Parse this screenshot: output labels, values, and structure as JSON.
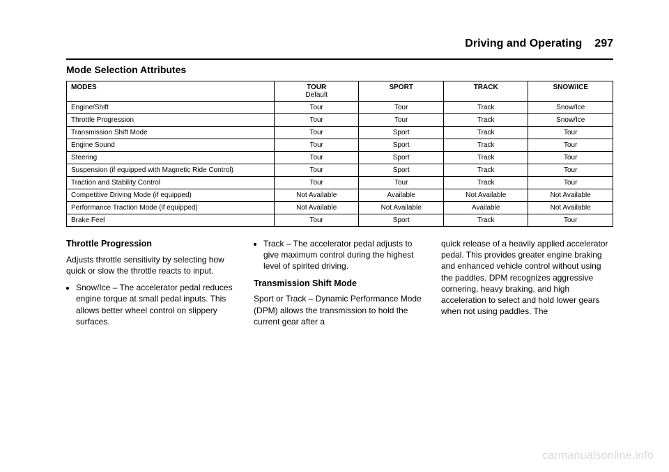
{
  "header": {
    "section": "Driving and Operating",
    "page": "297"
  },
  "section_title": "Mode Selection Attributes",
  "table": {
    "columns": [
      {
        "head": "MODES",
        "sub": ""
      },
      {
        "head": "TOUR",
        "sub": "Default"
      },
      {
        "head": "SPORT",
        "sub": ""
      },
      {
        "head": "TRACK",
        "sub": ""
      },
      {
        "head": "SNOW/ICE",
        "sub": ""
      }
    ],
    "rows": [
      [
        "Engine/Shift",
        "Tour",
        "Tour",
        "Track",
        "Snow/Ice"
      ],
      [
        "Throttle Progression",
        "Tour",
        "Tour",
        "Track",
        "Snow/Ice"
      ],
      [
        "Transmission Shift Mode",
        "Tour",
        "Sport",
        "Track",
        "Tour"
      ],
      [
        "Engine Sound",
        "Tour",
        "Sport",
        "Track",
        "Tour"
      ],
      [
        "Steering",
        "Tour",
        "Sport",
        "Track",
        "Tour"
      ],
      [
        "Suspension (if equipped with Magnetic Ride Control)",
        "Tour",
        "Sport",
        "Track",
        "Tour"
      ],
      [
        "Traction and Stability Control",
        "Tour",
        "Tour",
        "Track",
        "Tour"
      ],
      [
        "Competitive Driving Mode (if equipped)",
        "Not Available",
        "Available",
        "Not Available",
        "Not Available"
      ],
      [
        "Performance Traction Mode (if equipped)",
        "Not Available",
        "Not Available",
        "Available",
        "Not Available"
      ],
      [
        "Brake Feel",
        "Tour",
        "Sport",
        "Track",
        "Tour"
      ]
    ]
  },
  "body": {
    "col1": {
      "heading": "Throttle Progression",
      "para1": "Adjusts throttle sensitivity by selecting how quick or slow the throttle reacts to input.",
      "bullet1": "Snow/Ice – The accelerator pedal reduces engine torque at small pedal inputs. This allows better wheel control on slippery surfaces."
    },
    "col2": {
      "bullet1": "Track – The accelerator pedal adjusts to give maximum control during the highest level of spirited driving.",
      "heading": "Transmission Shift Mode",
      "para1": "Sport or Track – Dynamic Performance Mode (DPM) allows the transmission to hold the current gear after a"
    },
    "col3": {
      "para1": "quick release of a heavily applied accelerator pedal. This provides greater engine braking and enhanced vehicle control without using the paddles. DPM recognizes aggressive cornering, heavy braking, and high acceleration to select and hold lower gears when not using paddles. The"
    }
  },
  "watermark": "carmanualsonline.info"
}
